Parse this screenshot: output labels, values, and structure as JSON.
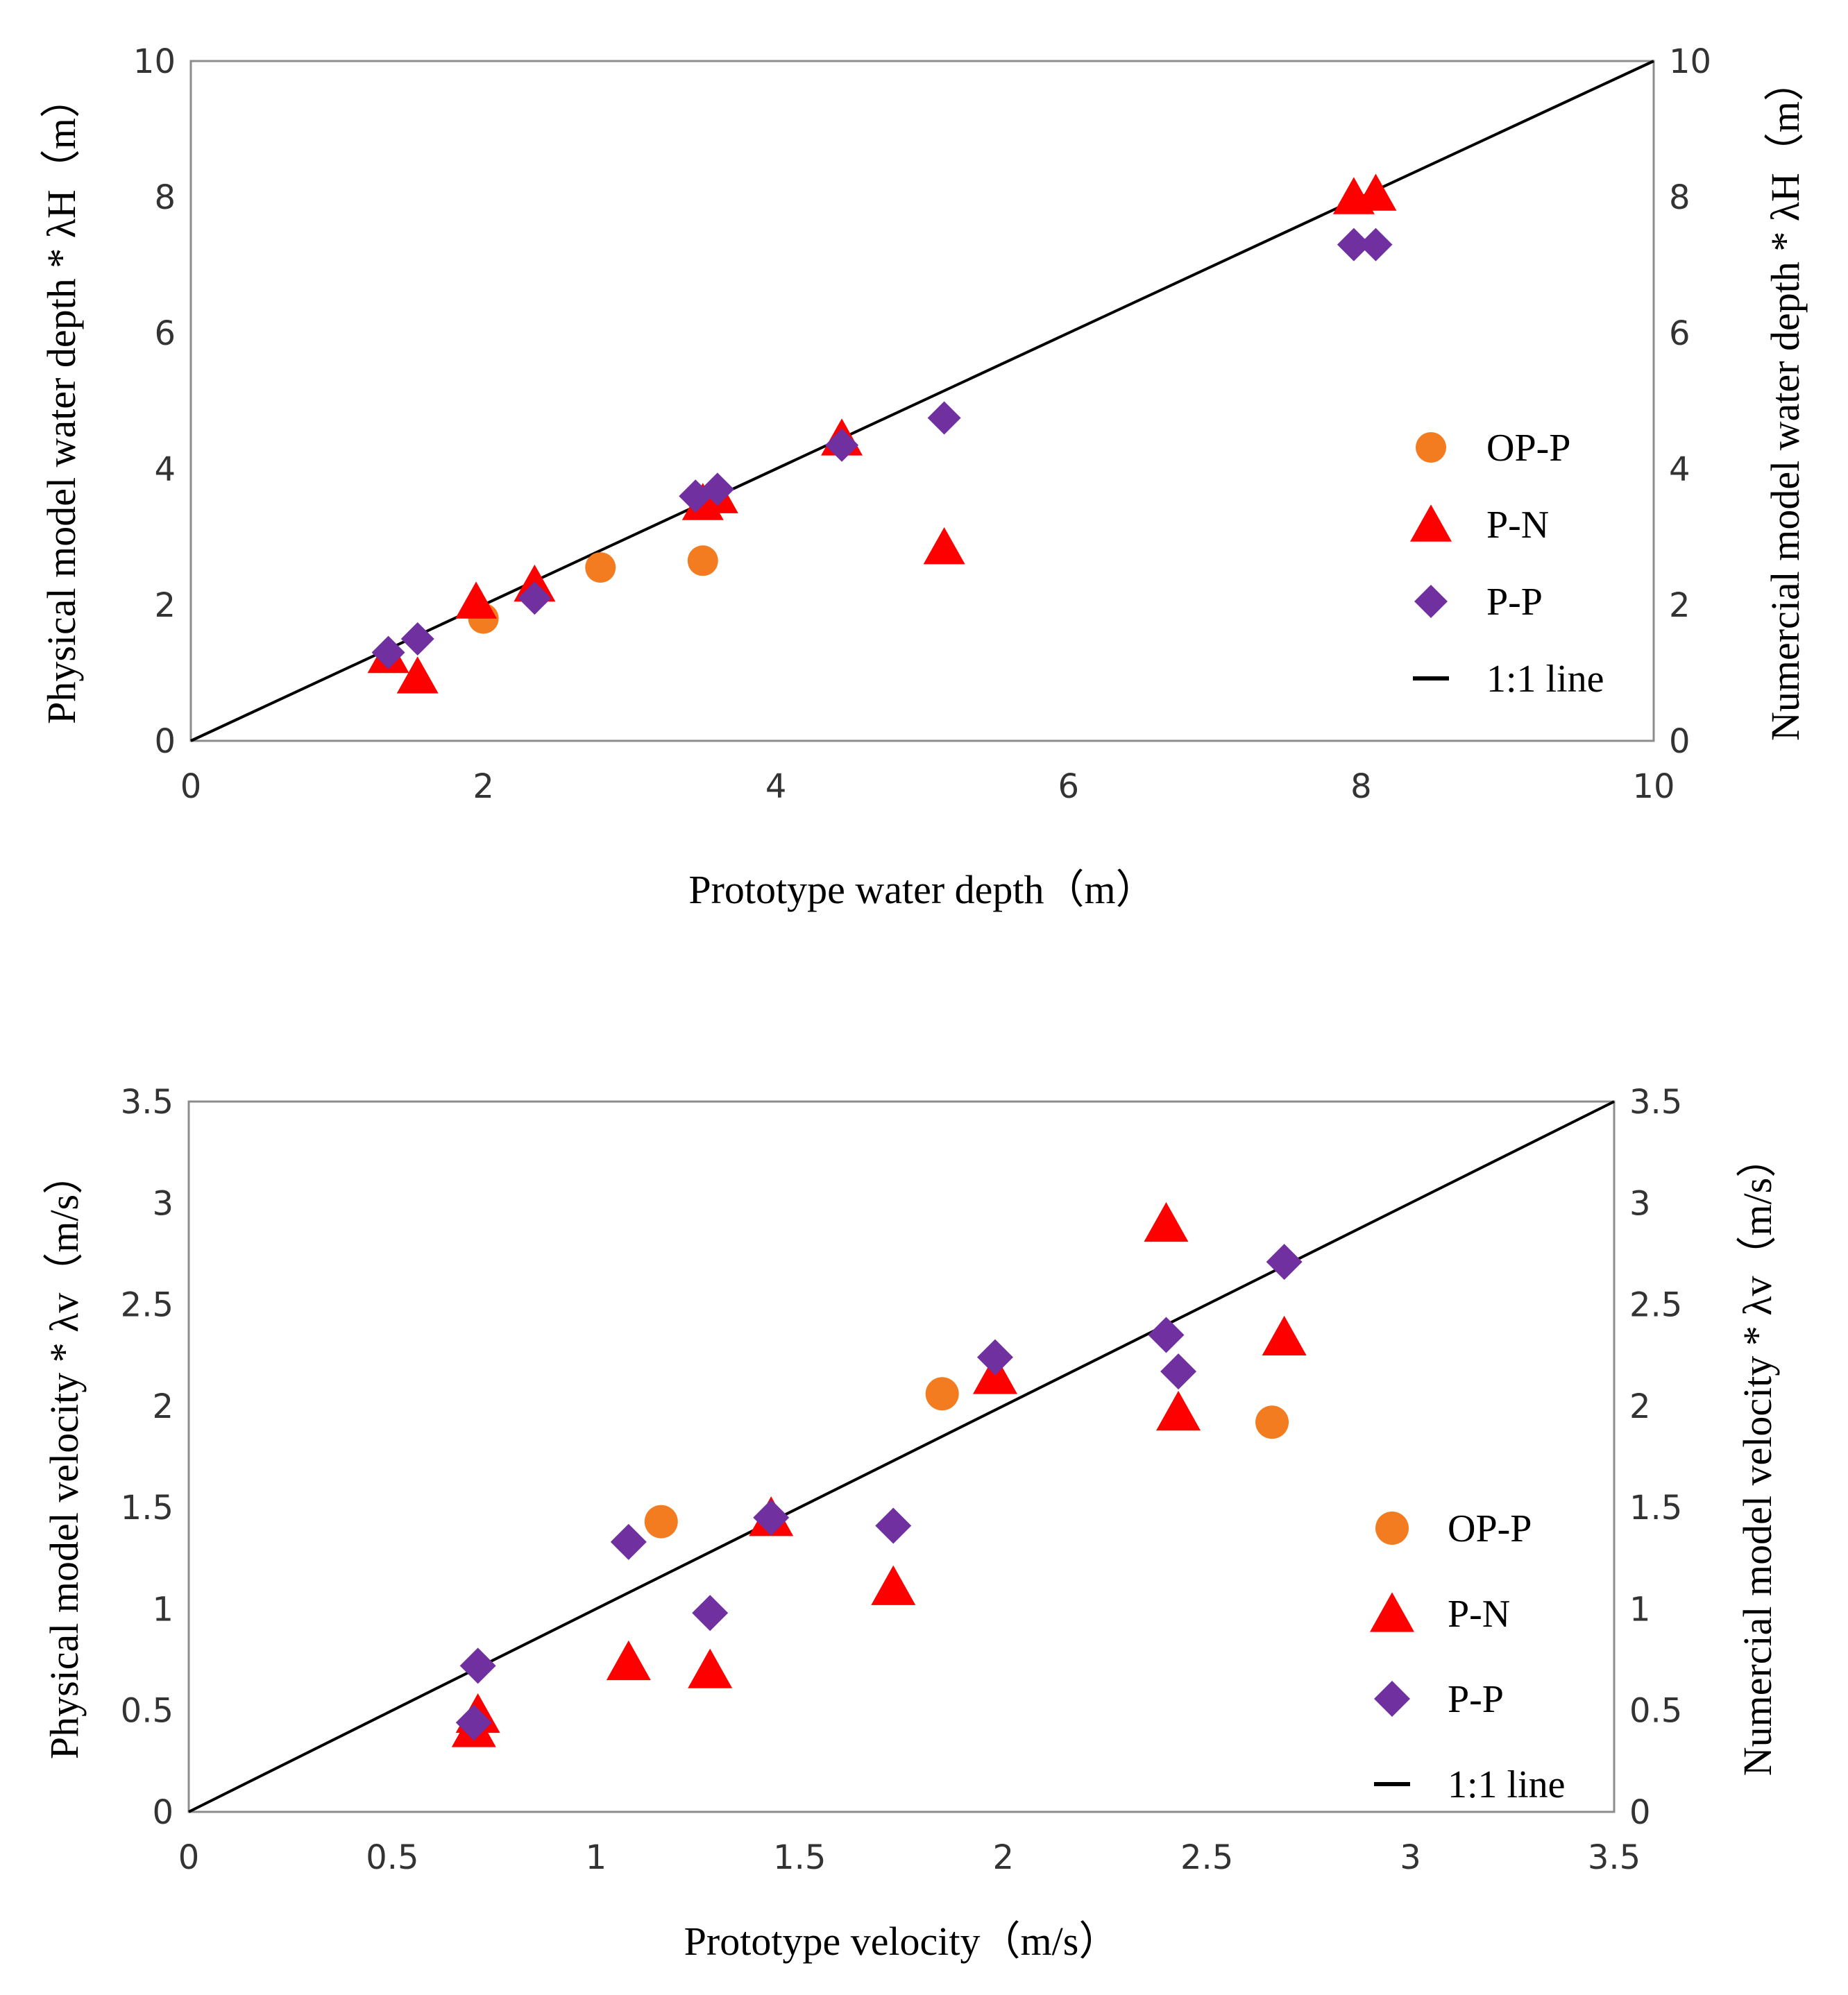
{
  "colors": {
    "op_p": "#f47c20",
    "p_n": "#ff0000",
    "p_p": "#7030a0",
    "line": "#000000"
  },
  "chart_data": [
    {
      "type": "scatter",
      "xlabel": "Prototype  water depth（m）",
      "ylabel_left": "Physical model  water depth * λH（m）",
      "ylabel_right": "Numercial model  water depth * λH（m）",
      "xlim": [
        0,
        10
      ],
      "ylim": [
        0,
        10
      ],
      "xticks": [
        "0",
        "2",
        "4",
        "6",
        "8",
        "10"
      ],
      "yticks": [
        "0",
        "2",
        "4",
        "6",
        "8",
        "10"
      ],
      "legend_position": "right-center",
      "series": [
        {
          "name": "OP-P",
          "marker": "circle",
          "points": [
            [
              2.0,
              1.8
            ],
            [
              2.8,
              2.55
            ],
            [
              3.5,
              2.65
            ]
          ]
        },
        {
          "name": "P-N",
          "marker": "triangle",
          "points": [
            [
              1.35,
              1.25
            ],
            [
              1.55,
              0.95
            ],
            [
              1.95,
              2.05
            ],
            [
              2.35,
              2.3
            ],
            [
              3.5,
              3.5
            ],
            [
              3.6,
              3.6
            ],
            [
              4.45,
              4.45
            ],
            [
              5.15,
              2.85
            ],
            [
              7.95,
              8.0
            ],
            [
              8.1,
              8.05
            ]
          ]
        },
        {
          "name": "P-P",
          "marker": "diamond",
          "points": [
            [
              1.35,
              1.3
            ],
            [
              1.55,
              1.5
            ],
            [
              2.35,
              2.1
            ],
            [
              3.45,
              3.6
            ],
            [
              3.6,
              3.7
            ],
            [
              4.45,
              4.35
            ],
            [
              5.15,
              4.75
            ],
            [
              7.95,
              7.3
            ],
            [
              8.1,
              7.3
            ]
          ]
        },
        {
          "name": "1:1 line",
          "marker": "line",
          "points": [
            [
              0,
              0
            ],
            [
              10,
              10
            ]
          ]
        }
      ]
    },
    {
      "type": "scatter",
      "xlabel": "Prototype  velocity（m/s）",
      "ylabel_left": "Physical model  velocity * λv（m/s）",
      "ylabel_right": "Numercial model  velocity * λv（m/s）",
      "xlim": [
        0,
        3.5
      ],
      "ylim": [
        0,
        3.5
      ],
      "xticks": [
        "0",
        "0.5",
        "1",
        "1.5",
        "2",
        "2.5",
        "3",
        "3.5"
      ],
      "yticks": [
        "0",
        "0.5",
        "1",
        "1.5",
        "2",
        "2.5",
        "3",
        "3.5"
      ],
      "legend_position": "bottom-right",
      "series": [
        {
          "name": "OP-P",
          "marker": "circle",
          "points": [
            [
              1.16,
              1.43
            ],
            [
              1.85,
              2.06
            ],
            [
              2.66,
              1.92
            ]
          ]
        },
        {
          "name": "P-N",
          "marker": "triangle",
          "points": [
            [
              0.7,
              0.41
            ],
            [
              0.71,
              0.48
            ],
            [
              1.08,
              0.74
            ],
            [
              1.28,
              0.7
            ],
            [
              1.43,
              1.45
            ],
            [
              1.73,
              1.11
            ],
            [
              1.98,
              2.15
            ],
            [
              2.4,
              2.9
            ],
            [
              2.43,
              1.97
            ],
            [
              2.69,
              2.34
            ]
          ]
        },
        {
          "name": "P-P",
          "marker": "diamond",
          "points": [
            [
              0.7,
              0.44
            ],
            [
              0.71,
              0.72
            ],
            [
              1.08,
              1.33
            ],
            [
              1.28,
              0.98
            ],
            [
              1.43,
              1.45
            ],
            [
              1.73,
              1.41
            ],
            [
              1.98,
              2.24
            ],
            [
              2.4,
              2.35
            ],
            [
              2.43,
              2.17
            ],
            [
              2.69,
              2.71
            ]
          ]
        },
        {
          "name": "1:1 line",
          "marker": "line",
          "points": [
            [
              0,
              0
            ],
            [
              3.5,
              3.5
            ]
          ]
        }
      ]
    }
  ]
}
